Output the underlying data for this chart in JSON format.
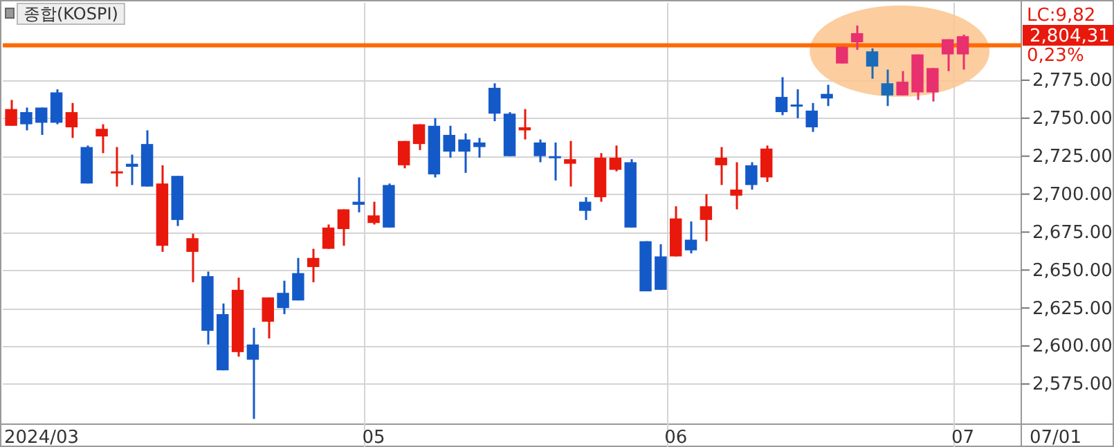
{
  "chart_data": {
    "type": "candlestick",
    "title": "종합(KOSPI)",
    "categories": [
      null,
      null,
      null,
      null,
      null,
      null,
      null,
      null,
      null,
      null,
      null,
      null,
      null,
      null,
      null,
      null,
      null,
      null,
      null,
      null,
      null,
      null,
      null,
      null,
      "05",
      null,
      null,
      null,
      null,
      null,
      null,
      null,
      null,
      null,
      null,
      null,
      null,
      null,
      null,
      null,
      null,
      null,
      null,
      null,
      "06",
      null,
      null,
      null,
      null,
      null,
      null,
      null,
      null,
      null,
      null,
      null,
      null,
      null,
      null,
      null,
      null,
      null,
      null,
      "07"
    ],
    "ohlc": [
      [
        2745,
        2762,
        2745,
        2756
      ],
      [
        2754,
        2757,
        2742,
        2746
      ],
      [
        2757,
        2757,
        2739,
        2747
      ],
      [
        2767,
        2769,
        2746,
        2747
      ],
      [
        2744,
        2760,
        2737,
        2754
      ],
      [
        2731,
        2732,
        2707,
        2707
      ],
      [
        2738,
        2746,
        2727,
        2743
      ],
      [
        2714,
        2731,
        2705,
        2715
      ],
      [
        2720,
        2726,
        2706,
        2718
      ],
      [
        2733,
        2742,
        2705,
        2705
      ],
      [
        2666,
        2719,
        2662,
        2707
      ],
      [
        2712,
        2712,
        2679,
        2683
      ],
      [
        2662,
        2674,
        2642,
        2671
      ],
      [
        2646,
        2649,
        2601,
        2610
      ],
      [
        2621,
        2628,
        2584,
        2584
      ],
      [
        2596,
        2645,
        2593,
        2637
      ],
      [
        2601,
        2612,
        2552,
        2591
      ],
      [
        2616,
        2632,
        2605,
        2632
      ],
      [
        2635,
        2643,
        2621,
        2625
      ],
      [
        2648,
        2658,
        2630,
        2630
      ],
      [
        2652,
        2664,
        2642,
        2658
      ],
      [
        2664,
        2680,
        2664,
        2678
      ],
      [
        2677,
        2690,
        2666,
        2690
      ],
      [
        2695,
        2711,
        2688,
        2693
      ],
      [
        2681,
        2695,
        2680,
        2686
      ],
      [
        2706,
        2707,
        2678,
        2678
      ],
      [
        2719,
        2735,
        2717,
        2735
      ],
      [
        2733,
        2746,
        2729,
        2746
      ],
      [
        2745,
        2750,
        2711,
        2713
      ],
      [
        2739,
        2745,
        2724,
        2728
      ],
      [
        2736,
        2740,
        2714,
        2728
      ],
      [
        2734,
        2737,
        2724,
        2731
      ],
      [
        2770,
        2773,
        2748,
        2753
      ],
      [
        2753,
        2754,
        2725,
        2725
      ],
      [
        2742,
        2756,
        2736,
        2744
      ],
      [
        2734,
        2736,
        2721,
        2725
      ],
      [
        2725,
        2734,
        2709,
        2724
      ],
      [
        2720,
        2735,
        2705,
        2723
      ],
      [
        2695,
        2698,
        2683,
        2689
      ],
      [
        2698,
        2727,
        2695,
        2724
      ],
      [
        2716,
        2732,
        2715,
        2724
      ],
      [
        2721,
        2723,
        2678,
        2678
      ],
      [
        2669,
        2669,
        2636,
        2636
      ],
      [
        2659,
        2667,
        2637,
        2637
      ],
      [
        2659,
        2692,
        2659,
        2684
      ],
      [
        2670,
        2682,
        2661,
        2663
      ],
      [
        2683,
        2700,
        2669,
        2692
      ],
      [
        2719,
        2731,
        2706,
        2724
      ],
      [
        2699,
        2721,
        2690,
        2703
      ],
      [
        2719,
        2721,
        2703,
        2706
      ],
      [
        2711,
        2732,
        2708,
        2730
      ],
      [
        2764,
        2777,
        2752,
        2754
      ],
      [
        2759,
        2769,
        2750,
        2758
      ],
      [
        2755,
        2760,
        2741,
        2744
      ],
      [
        2766,
        2772,
        2758,
        2763
      ],
      [
        2786,
        2797,
        2786,
        2797
      ],
      [
        2800,
        2811,
        2795,
        2806
      ],
      [
        2794,
        2796,
        2776,
        2784
      ],
      [
        2773,
        2782,
        2758,
        2765
      ],
      [
        2765,
        2781,
        2765,
        2774
      ],
      [
        2767,
        2792,
        2762,
        2792
      ],
      [
        2767,
        2783,
        2761,
        2783
      ],
      [
        2792,
        2802,
        2781,
        2802
      ],
      [
        2792,
        2805,
        2782,
        2804
      ]
    ],
    "colors": [
      "#e8190c",
      "#1459c8",
      "#1459c8",
      "#1459c8",
      "#e8190c",
      "#1459c8",
      "#e8190c",
      "#e8190c",
      "#1459c8",
      "#1459c8",
      "#e8190c",
      "#1459c8",
      "#e8190c",
      "#1459c8",
      "#1459c8",
      "#e8190c",
      "#1459c8",
      "#e8190c",
      "#1459c8",
      "#1459c8",
      "#e8190c",
      "#e8190c",
      "#e8190c",
      "#1459c8",
      "#e8190c",
      "#1459c8",
      "#e8190c",
      "#e8190c",
      "#1459c8",
      "#1459c8",
      "#1459c8",
      "#1459c8",
      "#1459c8",
      "#1459c8",
      "#e8190c",
      "#1459c8",
      "#1459c8",
      "#e8190c",
      "#1459c8",
      "#e8190c",
      "#e8190c",
      "#1459c8",
      "#1459c8",
      "#1459c8",
      "#e8190c",
      "#1459c8",
      "#e8190c",
      "#e8190c",
      "#e8190c",
      "#1459c8",
      "#e8190c",
      "#1459c8",
      "#1459c8",
      "#1459c8",
      "#1459c8",
      "#e8306e",
      "#e8306e",
      "#1a6bb8",
      "#1a6bb8",
      "#e8306e",
      "#e8306e",
      "#e8306e",
      "#e8306e",
      "#e8306e"
    ],
    "ylim": [
      2549,
      2826
    ],
    "yticks": [
      {
        "value": 2575,
        "label": "2,575.00"
      },
      {
        "value": 2600,
        "label": "2,600.00"
      },
      {
        "value": 2625,
        "label": "2,625.00"
      },
      {
        "value": 2650,
        "label": "2,650.00"
      },
      {
        "value": 2675,
        "label": "2,675.00"
      },
      {
        "value": 2700,
        "label": "2,700.00"
      },
      {
        "value": 2725,
        "label": "2,725.00"
      },
      {
        "value": 2750,
        "label": "2,750.00"
      },
      {
        "value": 2775,
        "label": "2,775.00"
      }
    ],
    "grid": true,
    "ref_lines": [
      {
        "axis": "y",
        "value": 2798,
        "color": "#ff6a00"
      }
    ],
    "annotations": [
      "LC:9,82",
      "2,804,31",
      "0,23%",
      "07/01",
      "2024/03"
    ]
  }
}
